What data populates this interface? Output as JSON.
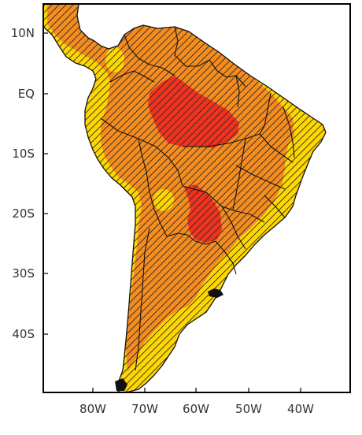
{
  "map": {
    "y_labels": [
      "10N",
      "EQ",
      "10S",
      "20S",
      "30S",
      "40S"
    ],
    "x_labels": [
      "80W",
      "70W",
      "60W",
      "50W",
      "40W"
    ],
    "colors": {
      "ocean": "#ffffff",
      "low": "#ffd700",
      "mid": "#f58c1e",
      "high": "#f0321e",
      "hatch": "#222222",
      "frame": "#000000"
    },
    "hatching": "diagonal lines over most of the continent"
  }
}
